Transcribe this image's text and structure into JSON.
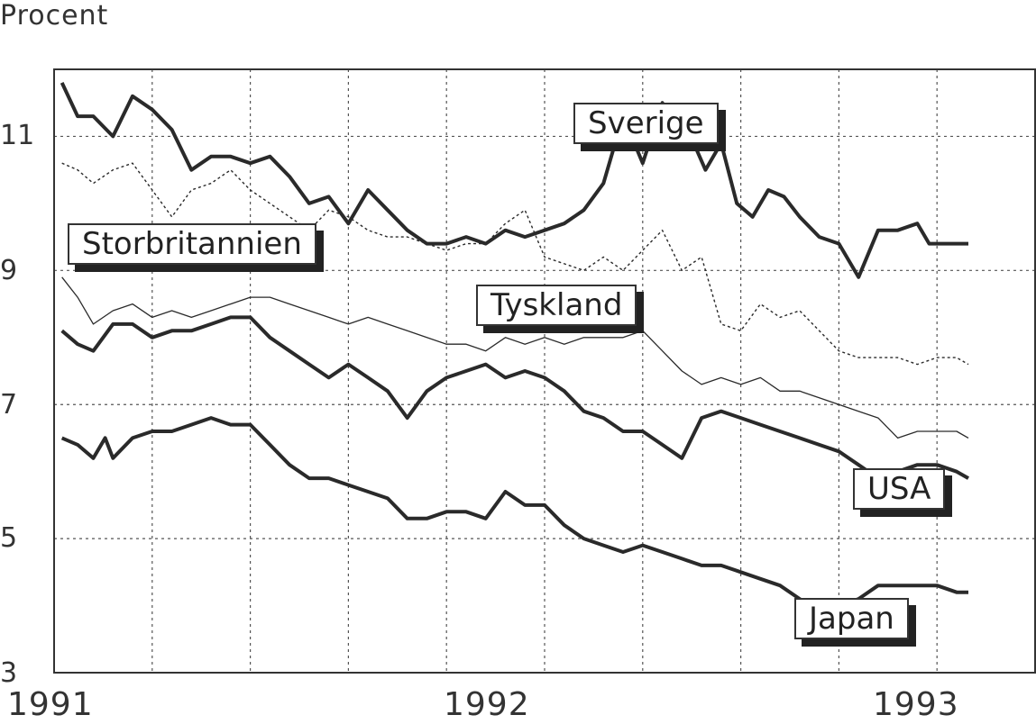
{
  "chart_data": {
    "type": "line",
    "ylabel": "Procent",
    "ylim": [
      3,
      12
    ],
    "yticks": [
      "3",
      "5",
      "7",
      "9",
      "11"
    ],
    "xlim": [
      1991.0,
      1993.5
    ],
    "xticks": [
      {
        "value": 1991.0,
        "label": "1991"
      },
      {
        "value": 1992.0,
        "label": "1992"
      },
      {
        "value": 1993.0,
        "label": "1993"
      }
    ],
    "grid": true,
    "series": [
      {
        "name": "Sverige",
        "style": "thick",
        "x": [
          1991.02,
          1991.06,
          1991.1,
          1991.15,
          1991.2,
          1991.25,
          1991.3,
          1991.35,
          1991.4,
          1991.45,
          1991.5,
          1991.55,
          1991.6,
          1991.65,
          1991.7,
          1991.75,
          1991.8,
          1991.85,
          1991.9,
          1991.95,
          1992.0,
          1992.05,
          1992.1,
          1992.15,
          1992.2,
          1992.25,
          1992.3,
          1992.35,
          1992.4,
          1992.45,
          1992.5,
          1992.55,
          1992.6,
          1992.63,
          1992.66,
          1992.7,
          1992.74,
          1992.78,
          1992.82,
          1992.86,
          1992.9,
          1992.95,
          1993.0,
          1993.05,
          1993.1,
          1993.15,
          1993.2,
          1993.23,
          1993.27,
          1993.3,
          1993.33
        ],
        "values": [
          11.8,
          11.3,
          11.3,
          11.0,
          11.6,
          11.4,
          11.1,
          10.5,
          10.7,
          10.7,
          10.6,
          10.7,
          10.4,
          10.0,
          10.1,
          9.7,
          10.2,
          9.9,
          9.6,
          9.4,
          9.4,
          9.5,
          9.4,
          9.6,
          9.5,
          9.6,
          9.7,
          9.9,
          10.3,
          11.3,
          10.6,
          11.5,
          11.0,
          10.9,
          10.5,
          10.9,
          10.0,
          9.8,
          10.2,
          10.1,
          9.8,
          9.5,
          9.4,
          8.9,
          9.6,
          9.6,
          9.7,
          9.4,
          9.4,
          9.4,
          9.4
        ]
      },
      {
        "name": "Storbritannien",
        "style": "dotted",
        "x": [
          1991.02,
          1991.06,
          1991.1,
          1991.15,
          1991.2,
          1991.25,
          1991.3,
          1991.35,
          1991.4,
          1991.45,
          1991.5,
          1991.55,
          1991.6,
          1991.65,
          1991.7,
          1991.75,
          1991.8,
          1991.85,
          1991.9,
          1991.95,
          1992.0,
          1992.05,
          1992.1,
          1992.15,
          1992.2,
          1992.25,
          1992.3,
          1992.35,
          1992.4,
          1992.45,
          1992.5,
          1992.55,
          1992.6,
          1992.65,
          1992.7,
          1992.75,
          1992.8,
          1992.85,
          1992.9,
          1992.95,
          1993.0,
          1993.05,
          1993.1,
          1993.15,
          1993.2,
          1993.25,
          1993.3,
          1993.33
        ],
        "values": [
          10.6,
          10.5,
          10.3,
          10.5,
          10.6,
          10.2,
          9.8,
          10.2,
          10.3,
          10.5,
          10.2,
          10.0,
          9.8,
          9.6,
          9.9,
          9.8,
          9.6,
          9.5,
          9.5,
          9.4,
          9.3,
          9.4,
          9.4,
          9.7,
          9.9,
          9.2,
          9.1,
          9.0,
          9.2,
          9.0,
          9.3,
          9.6,
          9.0,
          9.2,
          8.2,
          8.1,
          8.5,
          8.3,
          8.4,
          8.1,
          7.8,
          7.7,
          7.7,
          7.7,
          7.6,
          7.7,
          7.7,
          7.6
        ]
      },
      {
        "name": "Tyskland",
        "style": "thin",
        "x": [
          1991.02,
          1991.06,
          1991.1,
          1991.15,
          1991.2,
          1991.25,
          1991.3,
          1991.35,
          1991.4,
          1991.45,
          1991.5,
          1991.55,
          1991.6,
          1991.65,
          1991.7,
          1991.75,
          1991.8,
          1991.85,
          1991.9,
          1991.95,
          1992.0,
          1992.05,
          1992.1,
          1992.15,
          1992.2,
          1992.25,
          1992.3,
          1992.35,
          1992.4,
          1992.45,
          1992.5,
          1992.55,
          1992.6,
          1992.65,
          1992.7,
          1992.75,
          1992.8,
          1992.85,
          1992.9,
          1992.95,
          1993.0,
          1993.05,
          1993.1,
          1993.15,
          1993.2,
          1993.25,
          1993.3,
          1993.33
        ],
        "values": [
          8.9,
          8.6,
          8.2,
          8.4,
          8.5,
          8.3,
          8.4,
          8.3,
          8.4,
          8.5,
          8.6,
          8.6,
          8.5,
          8.4,
          8.3,
          8.2,
          8.3,
          8.2,
          8.1,
          8.0,
          7.9,
          7.9,
          7.8,
          8.0,
          7.9,
          8.0,
          7.9,
          8.0,
          8.0,
          8.0,
          8.1,
          7.8,
          7.5,
          7.3,
          7.4,
          7.3,
          7.4,
          7.2,
          7.2,
          7.1,
          7.0,
          6.9,
          6.8,
          6.5,
          6.6,
          6.6,
          6.6,
          6.5
        ]
      },
      {
        "name": "USA",
        "style": "thick",
        "x": [
          1991.02,
          1991.06,
          1991.1,
          1991.15,
          1991.2,
          1991.25,
          1991.3,
          1991.35,
          1991.4,
          1991.45,
          1991.5,
          1991.55,
          1991.6,
          1991.65,
          1991.7,
          1991.75,
          1991.8,
          1991.85,
          1991.9,
          1991.95,
          1992.0,
          1992.05,
          1992.1,
          1992.15,
          1992.2,
          1992.25,
          1992.3,
          1992.35,
          1992.4,
          1992.45,
          1992.5,
          1992.55,
          1992.6,
          1992.65,
          1992.7,
          1992.75,
          1992.8,
          1992.85,
          1992.9,
          1992.95,
          1993.0,
          1993.05,
          1993.1,
          1993.15,
          1993.2,
          1993.25,
          1993.3,
          1993.33
        ],
        "values": [
          8.1,
          7.9,
          7.8,
          8.2,
          8.2,
          8.0,
          8.1,
          8.1,
          8.2,
          8.3,
          8.3,
          8.0,
          7.8,
          7.6,
          7.4,
          7.6,
          7.4,
          7.2,
          6.8,
          7.2,
          7.4,
          7.5,
          7.6,
          7.4,
          7.5,
          7.4,
          7.2,
          6.9,
          6.8,
          6.6,
          6.6,
          6.4,
          6.2,
          6.8,
          6.9,
          6.8,
          6.7,
          6.6,
          6.5,
          6.4,
          6.3,
          6.1,
          5.9,
          6.0,
          6.1,
          6.1,
          6.0,
          5.9
        ]
      },
      {
        "name": "Japan",
        "style": "thick",
        "x": [
          1991.02,
          1991.06,
          1991.1,
          1991.13,
          1991.15,
          1991.2,
          1991.25,
          1991.3,
          1991.35,
          1991.4,
          1991.45,
          1991.5,
          1991.55,
          1991.6,
          1991.65,
          1991.7,
          1991.75,
          1991.8,
          1991.85,
          1991.9,
          1991.95,
          1992.0,
          1992.05,
          1992.1,
          1992.15,
          1992.2,
          1992.25,
          1992.3,
          1992.35,
          1992.4,
          1992.45,
          1992.5,
          1992.55,
          1992.6,
          1992.65,
          1992.7,
          1992.75,
          1992.8,
          1992.85,
          1992.9,
          1992.95,
          1993.0,
          1993.05,
          1993.1,
          1993.15,
          1993.2,
          1993.25,
          1993.3,
          1993.33
        ],
        "values": [
          6.5,
          6.4,
          6.2,
          6.5,
          6.2,
          6.5,
          6.6,
          6.6,
          6.7,
          6.8,
          6.7,
          6.7,
          6.4,
          6.1,
          5.9,
          5.9,
          5.8,
          5.7,
          5.6,
          5.3,
          5.3,
          5.4,
          5.4,
          5.3,
          5.7,
          5.5,
          5.5,
          5.2,
          5.0,
          4.9,
          4.8,
          4.9,
          4.8,
          4.7,
          4.6,
          4.6,
          4.5,
          4.4,
          4.3,
          4.1,
          3.9,
          4.0,
          4.1,
          4.3,
          4.3,
          4.3,
          4.3,
          4.2,
          4.2
        ]
      }
    ],
    "annotations": [
      "Sverige",
      "Storbritannien",
      "Tyskland",
      "USA",
      "Japan"
    ]
  }
}
